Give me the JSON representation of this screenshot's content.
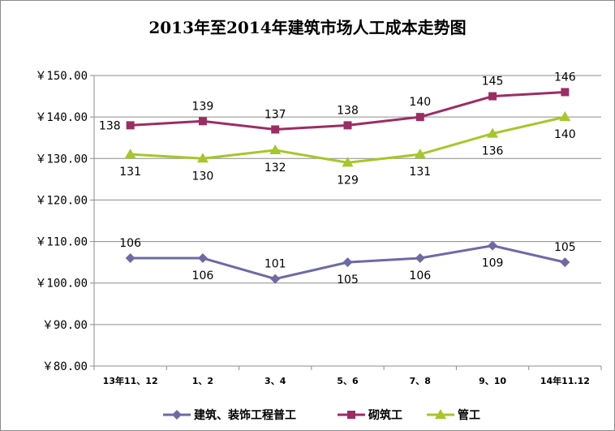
{
  "chart_data": {
    "type": "line",
    "title": "2013年至2014年建筑市场人工成本走势图",
    "categories": [
      "13年11、12",
      "1、2",
      "3、4",
      "5、6",
      "7、8",
      "9、10",
      "14年11.12"
    ],
    "ylim": [
      80,
      150
    ],
    "y_ticks": [
      "￥150.00",
      "￥140.00",
      "￥130.00",
      "￥120.00",
      "￥110.00",
      "￥100.00",
      "￥90.00",
      "￥80.00"
    ],
    "y_tick_values": [
      150,
      140,
      130,
      120,
      110,
      100,
      90,
      80
    ],
    "grid": true,
    "legend_position": "bottom",
    "series": [
      {
        "name": "建筑、装饰工程普工",
        "color": "#6d6aa4",
        "marker": "diamond",
        "values": [
          106,
          106,
          101,
          105,
          106,
          109,
          105
        ],
        "label_pos": [
          "above",
          "below",
          "above",
          "below",
          "below",
          "below",
          "above"
        ]
      },
      {
        "name": "砌筑工",
        "color": "#9b2d63",
        "marker": "square",
        "values": [
          138,
          139,
          137,
          138,
          140,
          145,
          146
        ],
        "label_pos": [
          "left",
          "above",
          "above",
          "above",
          "above",
          "above",
          "above"
        ]
      },
      {
        "name": "管工",
        "color": "#a6c72a",
        "marker": "triangle",
        "values": [
          131,
          130,
          132,
          129,
          131,
          136,
          140
        ],
        "label_pos": [
          "below",
          "below",
          "below",
          "below",
          "below",
          "below",
          "below"
        ]
      }
    ]
  }
}
